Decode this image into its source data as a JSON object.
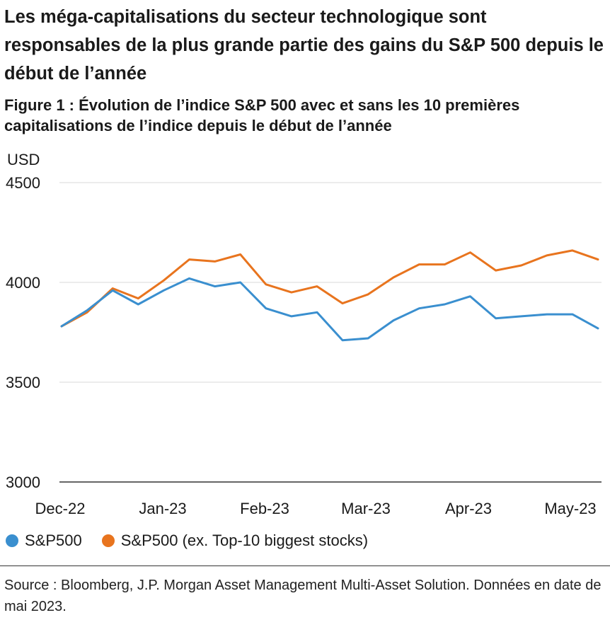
{
  "headline": "Les méga-capitalisations du secteur technologique sont responsables de la plus grande partie des gains du S&P 500 depuis le début de l’année",
  "figure_title": "Figure 1 : Évolution de l’indice S&P 500 avec et sans les 10 premières capitalisations de l’indice depuis le début de l’année",
  "source": "Source : Bloomberg, J.P. Morgan Asset Management Multi-Asset Solution. Données en date de mai 2023.",
  "colors": {
    "sp500": "#3a8fcf",
    "sp500_ex": "#e8741e",
    "grid": "#d9d9d9",
    "axis": "#333333"
  },
  "chart_data": {
    "type": "line",
    "ylabel": "USD",
    "ylim": [
      3000,
      4500
    ],
    "yticks": [
      3000,
      3500,
      4000,
      4500
    ],
    "x_labels": [
      "Dec-22",
      "Jan-23",
      "Feb-23",
      "Mar-23",
      "Apr-23",
      "May-23"
    ],
    "grid": true,
    "legend": "bottom",
    "series": [
      {
        "name": "S&P500",
        "values": [
          3780,
          3860,
          3960,
          3890,
          3960,
          4020,
          3980,
          4000,
          3870,
          3830,
          3850,
          3710,
          3720,
          3810,
          3870,
          3890,
          3930,
          3820,
          3830,
          3840,
          3840,
          3770
        ]
      },
      {
        "name": "S&P500 (ex. Top-10 biggest stocks)",
        "values": [
          3780,
          3850,
          3970,
          3920,
          4010,
          4115,
          4105,
          4140,
          3990,
          3950,
          3980,
          3895,
          3940,
          4025,
          4090,
          4090,
          4150,
          4060,
          4085,
          4135,
          4160,
          4115
        ]
      }
    ]
  }
}
